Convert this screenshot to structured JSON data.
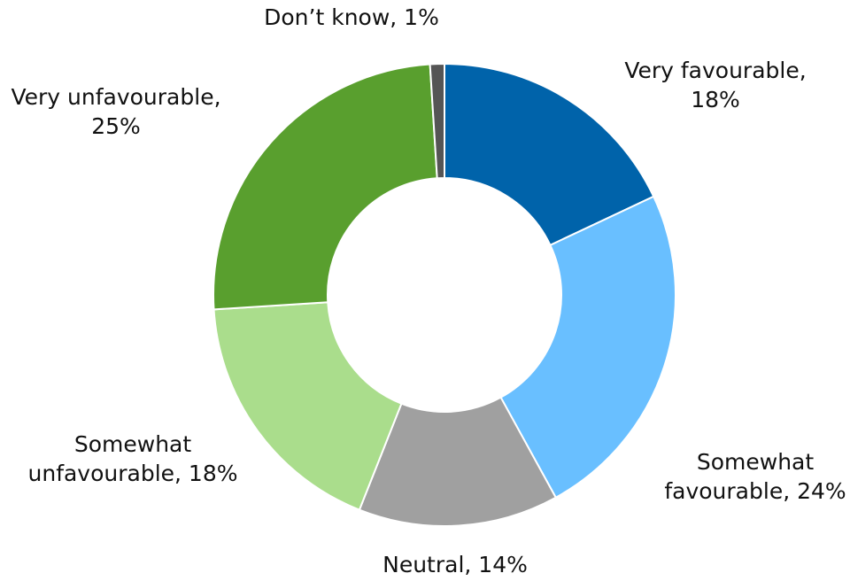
{
  "chart_data": {
    "type": "pie",
    "variant": "donut",
    "title": "",
    "slices": [
      {
        "name": "Very favourable",
        "value": 18,
        "color": "#0063AA",
        "label_lines": [
          "Very favourable,",
          "18%"
        ]
      },
      {
        "name": "Somewhat favourable",
        "value": 24,
        "color": "#69BFFF",
        "label_lines": [
          "Somewhat",
          "favourable, 24%"
        ]
      },
      {
        "name": "Neutral",
        "value": 14,
        "color": "#A0A0A0",
        "label_lines": [
          "Neutral, 14%"
        ]
      },
      {
        "name": "Somewhat unfavourable",
        "value": 18,
        "color": "#AADD8C",
        "label_lines": [
          "Somewhat",
          "unfavourable, 18%"
        ]
      },
      {
        "name": "Very unfavourable",
        "value": 25,
        "color": "#599F2E",
        "label_lines": [
          "Very unfavourable,",
          "25%"
        ]
      },
      {
        "name": "Don’t know",
        "value": 1,
        "color": "#555555",
        "label_lines": [
          "Don’t know, 1%"
        ]
      }
    ],
    "start_position": "12 o'clock",
    "direction": "clockwise",
    "legend": "none",
    "data_labels": "outside"
  }
}
